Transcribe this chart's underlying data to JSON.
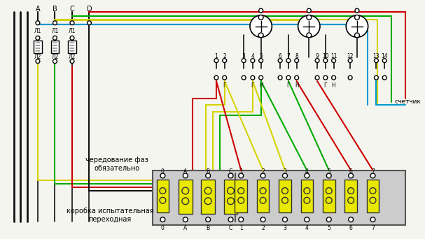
{
  "bg_color": "#f5f5f0",
  "title": "",
  "fig_w": 6.07,
  "fig_h": 3.42,
  "wire_colors": {
    "yellow": "#d4d400",
    "green": "#00aa00",
    "red": "#cc0000",
    "blue": "#0099cc",
    "black": "#111111",
    "brown": "#8B4513",
    "gray": "#888888"
  },
  "labels_top": [
    "A",
    "B",
    "C",
    "D"
  ],
  "labels_L1": [
    "Л1",
    "Л1",
    "Л1"
  ],
  "labels_L2": [
    "Л2",
    "Л2",
    "Л2"
  ],
  "ct_labels_top": [
    "1",
    "2",
    "3",
    "4",
    "5",
    "6",
    "7",
    "8",
    "9",
    "10",
    "11",
    "12",
    "13",
    "14"
  ],
  "ct_labels_bottom": [
    "Г",
    "Н",
    "Г",
    "Н",
    "Г",
    "Н"
  ],
  "box_labels_top": [
    "0",
    "A",
    "B",
    "C",
    "1",
    "2",
    "3",
    "4",
    "5",
    "6",
    "7"
  ],
  "box_labels_bottom": [
    "0",
    "A",
    "B",
    "C",
    "1",
    "2",
    "3",
    "4",
    "5",
    "6",
    "7"
  ],
  "text_cheredo": "чередование фаз",
  "text_obyaz": "обязательно",
  "text_korobka1": "коробка испытательная",
  "text_korobka2": "переходная",
  "text_schetchik": "счетчик"
}
